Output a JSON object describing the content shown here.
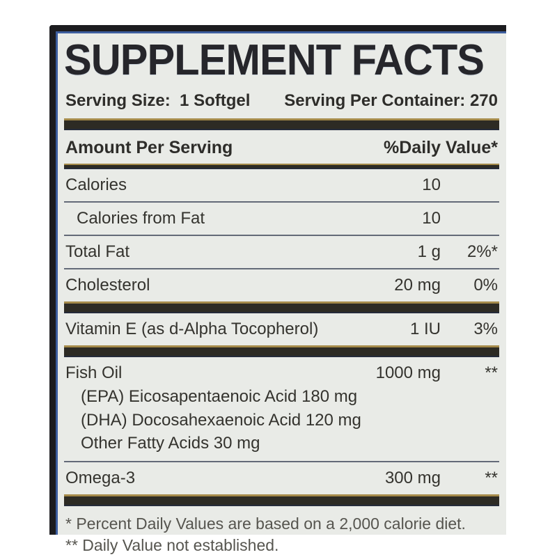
{
  "colors": {
    "label_background": "#e9ebe7",
    "frame_dark": "#1c1c1f",
    "frame_blue_accent": "#3c5d9e",
    "separator_dark": "#2d2b24",
    "separator_gold_edge": "#a58a4a",
    "thin_rule": "#636a78",
    "text_primary": "#34332e",
    "footnote_text": "#56554f"
  },
  "title": "SUPPLEMENT FACTS",
  "serving": {
    "size_label": "Serving Size:  1 Softgel",
    "per_container_label": "Serving Per Container: 270"
  },
  "columns": {
    "amount_header": "Amount Per Serving",
    "daily_value_header": "%Daily Value*"
  },
  "rows": [
    {
      "name": "Calories",
      "amount": "10",
      "dv": ""
    },
    {
      "name": "Calories from Fat",
      "amount": "10",
      "dv": ""
    },
    {
      "name": "Total Fat",
      "amount": "1 g",
      "dv": "2%*"
    },
    {
      "name": "Cholesterol",
      "amount": "20 mg",
      "dv": "0%"
    },
    {
      "name": "Vitamin E (as d-Alpha Tocopherol)",
      "amount": "1 IU",
      "dv": "3%"
    },
    {
      "name": "Fish Oil",
      "amount": "1000 mg",
      "dv": "**"
    },
    {
      "name": "Omega-3",
      "amount": "300 mg",
      "dv": "**"
    }
  ],
  "sub_ingredients": [
    "(EPA) Eicosapentaenoic Acid 180 mg",
    "(DHA) Docosahexaenoic Acid 120 mg",
    "Other Fatty Acids 30 mg"
  ],
  "footnotes": [
    "* Percent Daily Values are based on a 2,000 calorie diet.",
    "** Daily Value not established."
  ]
}
